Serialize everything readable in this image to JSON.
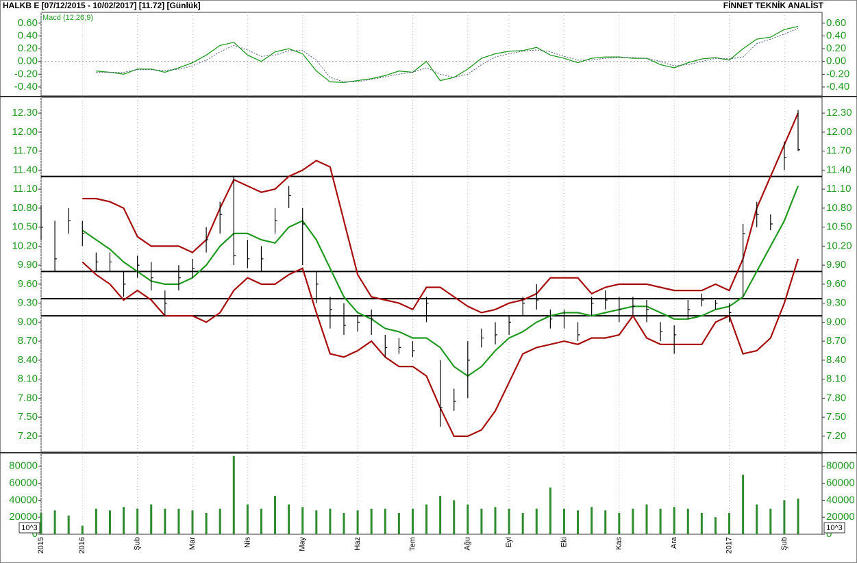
{
  "header": {
    "left": "HALKB E  [07/12/2015 - 10/02/2017]  [11.72]  [Günlük]",
    "right": "FİNNET TEKNİK ANALİST"
  },
  "chart_data": [
    {
      "type": "line",
      "label": "Macd (12,26,9)",
      "ylim": [
        -0.54,
        0.77
      ],
      "grid": true,
      "yticks": [
        {
          "value": 0.6,
          "label": "0.60"
        },
        {
          "value": 0.4,
          "label": "0.40"
        },
        {
          "value": 0.2,
          "label": "0.20"
        },
        {
          "value": 0,
          "label": "0.00"
        },
        {
          "value": -0.2,
          "label": "-0.20"
        },
        {
          "value": -0.4,
          "label": "-0.40"
        }
      ],
      "series": [
        {
          "color": "#1f9a1f",
          "dashed": false,
          "values": [
            null,
            null,
            null,
            null,
            -0.15,
            -0.17,
            -0.2,
            -0.12,
            -0.12,
            -0.17,
            -0.1,
            -0.02,
            0.1,
            0.25,
            0.3,
            0.1,
            0.0,
            0.15,
            0.2,
            0.12,
            -0.15,
            -0.32,
            -0.33,
            -0.3,
            -0.27,
            -0.22,
            -0.15,
            -0.17,
            0.0,
            -0.3,
            -0.25,
            -0.12,
            0.05,
            0.12,
            0.16,
            0.17,
            0.22,
            0.1,
            0.05,
            -0.02,
            0.05,
            0.07,
            0.07,
            0.05,
            0.05,
            -0.05,
            -0.1,
            -0.02,
            0.04,
            0.06,
            0.02,
            0.2,
            0.35,
            0.38,
            0.5,
            0.55
          ]
        },
        {
          "color": "#4a5a7a",
          "dashed": true,
          "values": [
            null,
            null,
            null,
            null,
            -0.17,
            -0.17,
            -0.17,
            -0.13,
            -0.13,
            -0.14,
            -0.12,
            -0.07,
            0.02,
            0.15,
            0.25,
            0.18,
            0.08,
            0.1,
            0.17,
            0.17,
            0.02,
            -0.25,
            -0.32,
            -0.32,
            -0.28,
            -0.24,
            -0.2,
            -0.17,
            -0.1,
            -0.2,
            -0.25,
            -0.2,
            -0.05,
            0.07,
            0.12,
            0.16,
            0.18,
            0.15,
            0.08,
            0.02,
            0.02,
            0.05,
            0.06,
            0.06,
            0.05,
            0.0,
            -0.07,
            -0.05,
            0.0,
            0.05,
            0.04,
            0.07,
            0.28,
            0.35,
            0.43,
            0.52
          ]
        }
      ]
    },
    {
      "type": "ohlc",
      "ylim": [
        6.95,
        12.55
      ],
      "grid": true,
      "color": "#000000",
      "hline_color": "#000000",
      "yticks": [
        {
          "value": 12.3,
          "label": "12.30"
        },
        {
          "value": 12,
          "label": "12.00"
        },
        {
          "value": 11.7,
          "label": "11.70"
        },
        {
          "value": 11.4,
          "label": "11.40"
        },
        {
          "value": 11.1,
          "label": "11.10"
        },
        {
          "value": 10.8,
          "label": "10.80"
        },
        {
          "value": 10.5,
          "label": "10.50"
        },
        {
          "value": 10.2,
          "label": "10.20"
        },
        {
          "value": 9.9,
          "label": "9.90"
        },
        {
          "value": 9.6,
          "label": "9.60"
        },
        {
          "value": 9.3,
          "label": "9.30"
        },
        {
          "value": 9,
          "label": "9.00"
        },
        {
          "value": 8.7,
          "label": "8.70"
        },
        {
          "value": 8.4,
          "label": "8.40"
        },
        {
          "value": 8.1,
          "label": "8.10"
        },
        {
          "value": 7.8,
          "label": "7.80"
        },
        {
          "value": 7.5,
          "label": "7.50"
        },
        {
          "value": 7.2,
          "label": "7.20"
        }
      ],
      "hlines": [
        11.3,
        9.8,
        9.37,
        9.1
      ],
      "high": [
        10.85,
        10.6,
        10.8,
        10.6,
        10.1,
        10.1,
        9.8,
        10.05,
        9.95,
        9.5,
        9.9,
        10.0,
        10.5,
        10.9,
        11.3,
        10.3,
        10.2,
        10.8,
        11.15,
        10.8,
        9.8,
        9.4,
        9.3,
        9.1,
        9.2,
        8.8,
        8.75,
        8.7,
        9.4,
        8.4,
        7.95,
        8.7,
        8.9,
        9.0,
        9.1,
        9.4,
        9.6,
        9.2,
        9.2,
        9.0,
        9.4,
        9.5,
        9.4,
        9.4,
        9.35,
        9.0,
        8.95,
        9.35,
        9.45,
        9.35,
        9.3,
        10.55,
        10.9,
        10.7,
        11.85,
        12.35
      ],
      "low": [
        10.3,
        9.8,
        10.4,
        10.2,
        9.8,
        9.8,
        9.4,
        9.7,
        9.5,
        9.1,
        9.5,
        9.7,
        10.1,
        10.4,
        9.9,
        9.85,
        9.8,
        10.4,
        10.8,
        9.9,
        9.3,
        8.9,
        8.8,
        8.85,
        8.8,
        8.45,
        8.5,
        8.45,
        9.0,
        7.35,
        7.6,
        7.8,
        8.6,
        8.65,
        8.8,
        9.1,
        9.2,
        8.9,
        8.9,
        8.7,
        9.1,
        9.2,
        9.0,
        9.1,
        9.0,
        8.7,
        8.5,
        9.05,
        9.25,
        9.2,
        9.0,
        9.4,
        10.5,
        10.45,
        11.4,
        11.7
      ],
      "close": [
        10.5,
        10.0,
        10.6,
        10.4,
        9.95,
        9.95,
        9.6,
        9.9,
        9.7,
        9.3,
        9.7,
        9.85,
        10.3,
        10.7,
        10.05,
        10.0,
        10.0,
        10.6,
        11.0,
        10.55,
        9.6,
        9.2,
        8.95,
        9.0,
        9.05,
        8.6,
        8.6,
        8.55,
        9.3,
        7.65,
        7.75,
        8.4,
        8.75,
        8.8,
        9.0,
        9.3,
        9.35,
        9.05,
        9.1,
        8.8,
        9.3,
        9.35,
        9.2,
        9.25,
        9.2,
        8.85,
        8.8,
        9.2,
        9.35,
        9.3,
        9.15,
        10.4,
        10.7,
        10.55,
        11.6,
        11.72
      ],
      "overlays": [
        {
          "color": "#a80c0c",
          "values": [
            null,
            null,
            null,
            10.95,
            10.95,
            10.9,
            10.8,
            10.35,
            10.2,
            10.2,
            10.2,
            10.1,
            10.3,
            10.8,
            11.25,
            11.15,
            11.05,
            11.1,
            11.3,
            11.4,
            11.55,
            11.45,
            10.6,
            9.75,
            9.4,
            9.35,
            9.3,
            9.2,
            9.55,
            9.55,
            9.4,
            9.25,
            9.15,
            9.2,
            9.3,
            9.35,
            9.45,
            9.7,
            9.7,
            9.7,
            9.45,
            9.55,
            9.6,
            9.6,
            9.6,
            9.55,
            9.5,
            9.5,
            9.5,
            9.6,
            9.5,
            10.0,
            10.8,
            11.3,
            11.8,
            12.3
          ]
        },
        {
          "color": "#1f9a1f",
          "values": [
            null,
            null,
            null,
            10.45,
            10.3,
            10.15,
            9.95,
            9.8,
            9.65,
            9.6,
            9.6,
            9.7,
            9.9,
            10.2,
            10.4,
            10.4,
            10.3,
            10.25,
            10.5,
            10.6,
            10.3,
            9.85,
            9.4,
            9.15,
            9.05,
            8.9,
            8.85,
            8.75,
            8.75,
            8.6,
            8.3,
            8.15,
            8.3,
            8.55,
            8.75,
            8.85,
            9.0,
            9.1,
            9.15,
            9.15,
            9.1,
            9.15,
            9.2,
            9.25,
            9.25,
            9.15,
            9.05,
            9.05,
            9.1,
            9.2,
            9.25,
            9.4,
            9.8,
            10.2,
            10.6,
            11.15
          ]
        },
        {
          "color": "#a80c0c",
          "values": [
            null,
            null,
            null,
            9.95,
            9.75,
            9.6,
            9.35,
            9.5,
            9.35,
            9.1,
            9.1,
            9.1,
            9.0,
            9.15,
            9.5,
            9.7,
            9.6,
            9.6,
            9.75,
            9.85,
            9.15,
            8.5,
            8.45,
            8.55,
            8.7,
            8.45,
            8.3,
            8.3,
            8.15,
            7.65,
            7.2,
            7.2,
            7.3,
            7.6,
            8.05,
            8.5,
            8.6,
            8.65,
            8.7,
            8.65,
            8.75,
            8.75,
            8.8,
            9.1,
            8.75,
            8.65,
            8.65,
            8.65,
            8.65,
            9.0,
            9.1,
            8.5,
            8.55,
            8.75,
            9.3,
            10.0
          ]
        }
      ]
    },
    {
      "type": "bar",
      "ylim": [
        0,
        95000
      ],
      "grid": true,
      "color": "#2e8b2e",
      "unit_label": "10^3",
      "yticks": [
        0,
        20000,
        40000,
        60000,
        80000
      ],
      "values": [
        25000,
        28000,
        22000,
        10000,
        30000,
        28000,
        32000,
        30000,
        35000,
        30000,
        30000,
        28000,
        25000,
        30000,
        92000,
        35000,
        30000,
        45000,
        35000,
        32000,
        28000,
        30000,
        25000,
        28000,
        30000,
        30000,
        25000,
        30000,
        35000,
        45000,
        40000,
        35000,
        30000,
        32000,
        30000,
        25000,
        30000,
        55000,
        30000,
        28000,
        32000,
        28000,
        25000,
        30000,
        35000,
        30000,
        32000,
        30000,
        25000,
        20000,
        25000,
        70000,
        35000,
        30000,
        40000,
        42000
      ],
      "categories": [
        "2015",
        null,
        null,
        "2016",
        null,
        null,
        null,
        "Şub",
        null,
        null,
        null,
        "Mar",
        null,
        null,
        null,
        "Nis",
        null,
        null,
        null,
        "May",
        null,
        null,
        null,
        "Haz",
        null,
        null,
        null,
        "Tem",
        null,
        null,
        null,
        "Ağu",
        null,
        null,
        "Eyl",
        null,
        null,
        null,
        "Eki",
        null,
        null,
        null,
        "Kas",
        null,
        null,
        null,
        "Ara",
        null,
        null,
        null,
        "2017",
        null,
        null,
        null,
        "Şub",
        null
      ]
    }
  ]
}
